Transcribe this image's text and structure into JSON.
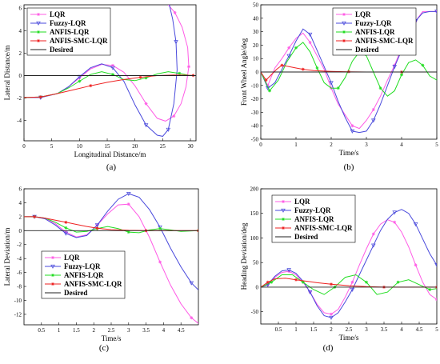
{
  "panels": [
    {
      "id": "a",
      "caption": "(a)",
      "chart_data": {
        "type": "line",
        "xlabel": "Longitudinal Distance/m",
        "ylabel": "Lateral Distance/m",
        "xlim": [
          0,
          31
        ],
        "ylim": [
          -5.8,
          6.3
        ],
        "xticks": [
          0,
          5,
          10,
          15,
          20,
          25,
          30
        ],
        "yticks": [
          -4,
          -2,
          0,
          2,
          4,
          6
        ],
        "grid": false,
        "legend_placement": "top-left",
        "series": [
          {
            "name": "LQR",
            "color": "#ff5ce6",
            "marker": "*",
            "x": [
              0,
              3,
              6,
              8,
              10,
              12,
              14,
              16,
              18,
              20,
              22,
              24,
              25.5,
              27,
              28.3,
              29.2,
              29.7,
              29.5,
              28.5,
              27.2,
              26
            ],
            "y": [
              -1.95,
              -1.95,
              -1.6,
              -1,
              -0.2,
              0.6,
              1,
              0.9,
              0.3,
              -0.9,
              -2.5,
              -3.8,
              -4.05,
              -3.6,
              -2.5,
              -1,
              0.8,
              2.5,
              4.3,
              5.6,
              6.3
            ]
          },
          {
            "name": "Fuzzy-LQR",
            "color": "#4a4adc",
            "marker": "triangle",
            "x": [
              0,
              3,
              6,
              8,
              10,
              12,
              14,
              16,
              18,
              20,
              22,
              24,
              25,
              26,
              27,
              27.6,
              27.4,
              26.8,
              26.2
            ],
            "y": [
              -1.95,
              -1.95,
              -1.6,
              -1,
              -0.1,
              0.7,
              1.05,
              0.7,
              -0.5,
              -2.6,
              -4.4,
              -5.3,
              -5.4,
              -4.8,
              -2.5,
              0.5,
              3,
              5,
              6.3
            ]
          },
          {
            "name": "ANFIS-LQR",
            "color": "#22dd22",
            "marker": "*",
            "x": [
              0,
              3,
              6,
              8,
              10,
              12,
              14,
              16,
              18,
              20,
              22,
              24,
              26,
              28,
              30
            ],
            "y": [
              -1.95,
              -1.9,
              -1.6,
              -1.1,
              -0.5,
              0.1,
              0.35,
              0.1,
              -0.35,
              -0.45,
              -0.2,
              0.15,
              0.35,
              0.2,
              0
            ]
          },
          {
            "name": "ANFIS-SMC-LQR",
            "color": "#ee2222",
            "marker": "*",
            "x": [
              0,
              3,
              6,
              9,
              12,
              15,
              18,
              21,
              24,
              27,
              30.5
            ],
            "y": [
              -1.95,
              -1.9,
              -1.6,
              -1.25,
              -0.9,
              -0.6,
              -0.35,
              -0.15,
              0,
              0.05,
              0.02
            ]
          },
          {
            "name": "Desired",
            "color": "#222222",
            "marker": "none",
            "x": [
              0,
              31
            ],
            "y": [
              0,
              0
            ]
          }
        ]
      }
    },
    {
      "id": "b",
      "caption": "(b)",
      "chart_data": {
        "type": "line",
        "xlabel": "Time/s",
        "ylabel": "Front Wheel Angle/deg",
        "xlim": [
          0,
          5
        ],
        "ylim": [
          -50,
          50
        ],
        "xticks": [
          0,
          1,
          2,
          3,
          4,
          5
        ],
        "yticks": [
          -50,
          -40,
          -30,
          -20,
          -10,
          0,
          10,
          20,
          30,
          40,
          50
        ],
        "grid": false,
        "legend_placement": "top-left",
        "series": [
          {
            "name": "LQR",
            "color": "#ff5ce6",
            "marker": "*",
            "x": [
              0,
              0.2,
              0.4,
              0.6,
              0.8,
              1.0,
              1.2,
              1.4,
              1.6,
              1.8,
              2.0,
              2.2,
              2.4,
              2.6,
              2.8,
              3.0,
              3.2,
              3.4,
              3.6,
              3.8,
              4.0,
              4.2,
              4.4,
              4.6,
              4.8,
              5.0
            ],
            "y": [
              0,
              -10,
              3,
              10,
              18,
              25,
              29,
              22,
              12,
              2,
              -12,
              -24,
              -32,
              -40,
              -42,
              -36,
              -28,
              -18,
              -6,
              5,
              18,
              28,
              38,
              45,
              45,
              45
            ]
          },
          {
            "name": "Fuzzy-LQR",
            "color": "#4a4adc",
            "marker": "triangle",
            "x": [
              0,
              0.2,
              0.4,
              0.6,
              0.8,
              1.0,
              1.2,
              1.4,
              1.6,
              1.8,
              2.0,
              2.2,
              2.4,
              2.6,
              2.8,
              3.0,
              3.2,
              3.4,
              3.6,
              3.8,
              4.0,
              4.2,
              4.4,
              4.6,
              4.8,
              5.0
            ],
            "y": [
              0,
              -12,
              -8,
              2,
              12,
              23,
              32,
              28,
              16,
              4,
              -8,
              -22,
              -34,
              -44,
              -45,
              -44,
              -36,
              -24,
              -10,
              4,
              16,
              28,
              38,
              44,
              45,
              45
            ]
          },
          {
            "name": "ANFIS-LQR",
            "color": "#22dd22",
            "marker": "*",
            "x": [
              0,
              0.25,
              0.5,
              0.75,
              1.0,
              1.2,
              1.4,
              1.6,
              1.8,
              2.0,
              2.2,
              2.4,
              2.6,
              2.8,
              3.0,
              3.2,
              3.4,
              3.6,
              3.8,
              4.0,
              4.2,
              4.4,
              4.6,
              4.8,
              5.0
            ],
            "y": [
              0,
              -14,
              -6,
              8,
              18,
              22,
              15,
              3,
              -8,
              -12,
              -12,
              -4,
              8,
              15,
              12,
              0,
              -12,
              -18,
              -14,
              -2,
              7,
              9,
              5,
              -3,
              -6
            ]
          },
          {
            "name": "ANFIS-SMC-LQR",
            "color": "#ee2222",
            "marker": "*",
            "x": [
              0,
              0.15,
              0.3,
              0.45,
              0.6,
              0.8,
              1.0,
              1.2,
              1.5,
              2.0,
              2.5,
              3.0,
              3.5,
              4.0,
              4.5,
              5.0
            ],
            "y": [
              0,
              -6,
              -2,
              2,
              5,
              4,
              3,
              2,
              1,
              0.5,
              0.2,
              0,
              0,
              0,
              0,
              0
            ]
          },
          {
            "name": "Desired",
            "color": "#222222",
            "marker": "none",
            "x": [
              0,
              5
            ],
            "y": [
              0,
              0
            ]
          }
        ]
      }
    },
    {
      "id": "c",
      "caption": "(c)",
      "chart_data": {
        "type": "line",
        "xlabel": "Time/s",
        "ylabel": "Lateral Deviation/m",
        "xlim": [
          0,
          5
        ],
        "ylim": [
          -13.5,
          6
        ],
        "xticks": [
          0.5,
          1,
          1.5,
          2,
          2.5,
          3,
          3.5,
          4,
          4.5
        ],
        "yticks": [
          -12,
          -10,
          -8,
          -6,
          -4,
          -2,
          0,
          2,
          4,
          6
        ],
        "grid": false,
        "legend_placement": "bottom-left",
        "series": [
          {
            "name": "LQR",
            "color": "#ff5ce6",
            "marker": "*",
            "x": [
              0,
              0.3,
              0.6,
              0.9,
              1.2,
              1.5,
              1.8,
              2.1,
              2.4,
              2.7,
              3.0,
              3.3,
              3.6,
              3.9,
              4.2,
              4.5,
              4.8,
              5.0
            ],
            "y": [
              2,
              2,
              1.8,
              1.0,
              -0.2,
              -0.9,
              -0.6,
              0.8,
              2.4,
              3.7,
              3.8,
              2.0,
              -1.0,
              -4.5,
              -7.8,
              -10.5,
              -12.5,
              -13.3
            ]
          },
          {
            "name": "Fuzzy-LQR",
            "color": "#4a4adc",
            "marker": "triangle",
            "x": [
              0,
              0.3,
              0.6,
              0.9,
              1.2,
              1.5,
              1.8,
              2.1,
              2.4,
              2.7,
              3.0,
              3.3,
              3.6,
              3.9,
              4.2,
              4.5,
              4.8,
              5.0
            ],
            "y": [
              2,
              2,
              1.7,
              0.8,
              -0.4,
              -1.0,
              -0.7,
              0.8,
              2.8,
              4.5,
              5.3,
              4.8,
              3.0,
              0.5,
              -2.5,
              -5.2,
              -7.5,
              -8.5
            ]
          },
          {
            "name": "ANFIS-LQR",
            "color": "#22dd22",
            "marker": "*",
            "x": [
              0,
              0.3,
              0.6,
              0.9,
              1.2,
              1.5,
              1.8,
              2.1,
              2.4,
              2.7,
              3.0,
              3.3,
              3.6,
              3.9,
              4.2,
              4.5,
              5.0
            ],
            "y": [
              2,
              2,
              1.8,
              1.2,
              0.4,
              -0.2,
              -0.1,
              0.3,
              0.6,
              0.3,
              -0.2,
              -0.3,
              0.1,
              0.3,
              0.1,
              -0.1,
              0
            ]
          },
          {
            "name": "ANFIS-SMC-LQR",
            "color": "#ee2222",
            "marker": "*",
            "x": [
              0,
              0.3,
              0.6,
              0.9,
              1.2,
              1.5,
              1.8,
              2.1,
              2.5,
              3.0,
              3.5,
              4.0,
              4.5,
              5.0
            ],
            "y": [
              2,
              2,
              1.8,
              1.5,
              1.2,
              0.9,
              0.6,
              0.35,
              0.15,
              0.05,
              0,
              0,
              0,
              0
            ]
          },
          {
            "name": "Desired",
            "color": "#222222",
            "marker": "none",
            "x": [
              0,
              5
            ],
            "y": [
              0,
              0
            ]
          }
        ]
      }
    },
    {
      "id": "d",
      "caption": "(d)",
      "chart_data": {
        "type": "line",
        "xlabel": "Time/s",
        "ylabel": "Heading Deviation/deg",
        "xlim": [
          0,
          5
        ],
        "ylim": [
          -75,
          200
        ],
        "xticks": [
          0.5,
          1,
          1.5,
          2,
          2.5,
          3,
          3.5,
          4,
          4.5,
          5
        ],
        "yticks": [
          -50,
          0,
          50,
          100,
          150,
          200
        ],
        "grid": false,
        "legend_placement": "top-left",
        "series": [
          {
            "name": "LQR",
            "color": "#ff5ce6",
            "marker": "*",
            "x": [
              0,
              0.2,
              0.4,
              0.6,
              0.8,
              1.0,
              1.2,
              1.4,
              1.6,
              1.8,
              2.0,
              2.2,
              2.4,
              2.6,
              2.8,
              3.0,
              3.2,
              3.4,
              3.6,
              3.8,
              4.0,
              4.2,
              4.4,
              4.6,
              4.8,
              5.0
            ],
            "y": [
              0,
              5,
              20,
              30,
              32,
              25,
              10,
              -10,
              -35,
              -52,
              -55,
              -45,
              -20,
              10,
              45,
              78,
              108,
              128,
              137,
              132,
              112,
              82,
              45,
              10,
              -15,
              -25
            ]
          },
          {
            "name": "Fuzzy-LQR",
            "color": "#4a4adc",
            "marker": "triangle",
            "x": [
              0,
              0.2,
              0.4,
              0.6,
              0.8,
              1.0,
              1.2,
              1.4,
              1.6,
              1.8,
              2.0,
              2.2,
              2.4,
              2.6,
              2.8,
              3.0,
              3.2,
              3.4,
              3.6,
              3.8,
              4.0,
              4.2,
              4.4,
              4.6,
              4.8,
              5.0
            ],
            "y": [
              0,
              5,
              22,
              33,
              35,
              28,
              12,
              -10,
              -38,
              -58,
              -62,
              -52,
              -30,
              -5,
              25,
              55,
              85,
              115,
              138,
              152,
              158,
              150,
              128,
              98,
              68,
              45
            ]
          },
          {
            "name": "ANFIS-LQR",
            "color": "#22dd22",
            "marker": "*",
            "x": [
              0,
              0.3,
              0.6,
              0.9,
              1.2,
              1.5,
              1.8,
              2.1,
              2.4,
              2.7,
              3.0,
              3.3,
              3.6,
              3.9,
              4.2,
              4.5,
              4.8,
              5.0
            ],
            "y": [
              0,
              10,
              25,
              25,
              10,
              -5,
              -15,
              0,
              20,
              25,
              10,
              -15,
              -10,
              10,
              15,
              5,
              -5,
              -3
            ]
          },
          {
            "name": "ANFIS-SMC-LQR",
            "color": "#ee2222",
            "marker": "*",
            "x": [
              0,
              0.2,
              0.4,
              0.7,
              1.0,
              1.3,
              1.6,
              2.0,
              2.5,
              3.0,
              3.5,
              4.0,
              4.5,
              5.0
            ],
            "y": [
              0,
              10,
              17,
              18,
              15,
              12,
              9,
              6,
              3,
              1,
              0,
              0,
              0,
              0
            ]
          },
          {
            "name": "Desired",
            "color": "#222222",
            "marker": "none",
            "x": [
              0,
              5
            ],
            "y": [
              0,
              0
            ]
          }
        ]
      }
    }
  ]
}
